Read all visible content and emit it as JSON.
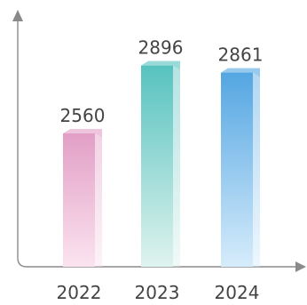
{
  "chart_data": {
    "type": "bar",
    "categories": [
      "2022",
      "2023",
      "2024"
    ],
    "values": [
      2560,
      2896,
      2861
    ],
    "title": "",
    "xlabel": "",
    "ylabel": "",
    "ylim": [
      1900,
      3000
    ],
    "grid": false,
    "legend": "none",
    "colors": [
      {
        "top": "#e29fc6",
        "bottom": "#fbe3ef"
      },
      {
        "top": "#57c2bf",
        "bottom": "#dff3ee"
      },
      {
        "top": "#54a6e2",
        "bottom": "#d6ecfb"
      }
    ]
  }
}
